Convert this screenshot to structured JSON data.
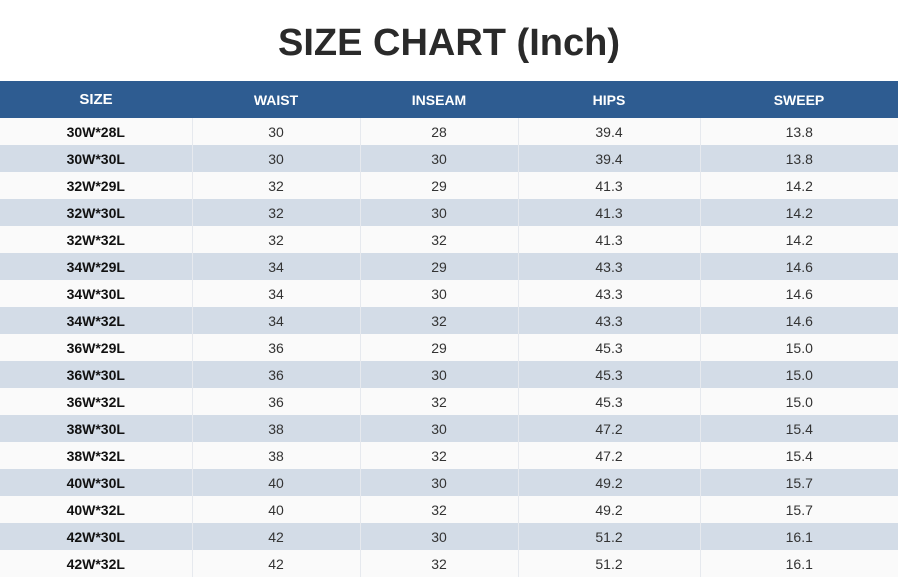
{
  "title": "SIZE CHART (Inch)",
  "columns": [
    "SIZE",
    "WAIST",
    "INSEAM",
    "HIPS",
    "SWEEP"
  ],
  "rows": [
    [
      "30W*28L",
      "30",
      "28",
      "39.4",
      "13.8"
    ],
    [
      "30W*30L",
      "30",
      "30",
      "39.4",
      "13.8"
    ],
    [
      "32W*29L",
      "32",
      "29",
      "41.3",
      "14.2"
    ],
    [
      "32W*30L",
      "32",
      "30",
      "41.3",
      "14.2"
    ],
    [
      "32W*32L",
      "32",
      "32",
      "41.3",
      "14.2"
    ],
    [
      "34W*29L",
      "34",
      "29",
      "43.3",
      "14.6"
    ],
    [
      "34W*30L",
      "34",
      "30",
      "43.3",
      "14.6"
    ],
    [
      "34W*32L",
      "34",
      "32",
      "43.3",
      "14.6"
    ],
    [
      "36W*29L",
      "36",
      "29",
      "45.3",
      "15.0"
    ],
    [
      "36W*30L",
      "36",
      "30",
      "45.3",
      "15.0"
    ],
    [
      "36W*32L",
      "36",
      "32",
      "45.3",
      "15.0"
    ],
    [
      "38W*30L",
      "38",
      "30",
      "47.2",
      "15.4"
    ],
    [
      "38W*32L",
      "38",
      "32",
      "47.2",
      "15.4"
    ],
    [
      "40W*30L",
      "40",
      "30",
      "49.2",
      "15.7"
    ],
    [
      "40W*32L",
      "40",
      "32",
      "49.2",
      "15.7"
    ],
    [
      "42W*30L",
      "42",
      "30",
      "51.2",
      "16.1"
    ],
    [
      "42W*32L",
      "42",
      "32",
      "51.2",
      "16.1"
    ]
  ],
  "colors": {
    "header": "#2e5c91",
    "alt_row": "#d3dce7"
  }
}
